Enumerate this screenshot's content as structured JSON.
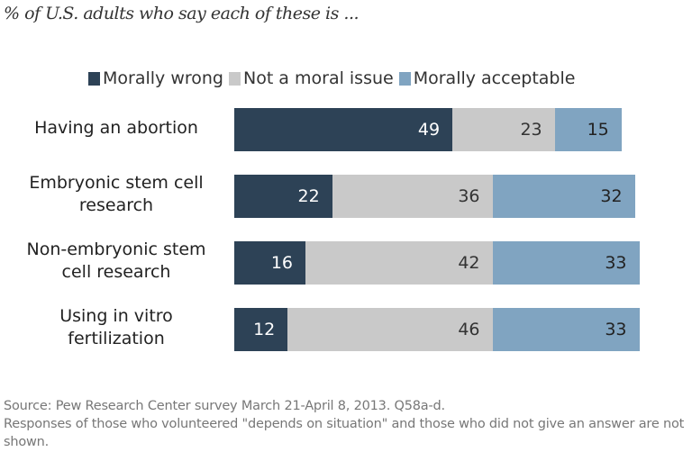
{
  "chart_data": {
    "type": "bar",
    "orientation": "horizontal",
    "stacked": true,
    "title": "",
    "subtitle": "% of U.S. adults who say each of these is ...",
    "categories": [
      "Having an abortion",
      "Embryonic stem cell research",
      "Non-embryonic stem cell research",
      "Using in vitro fertilization"
    ],
    "series": [
      {
        "name": "Morally wrong",
        "color": "#2d4256",
        "label_color": "#ffffff",
        "values": [
          49,
          22,
          16,
          12
        ]
      },
      {
        "name": "Not a moral issue",
        "color": "#c9c9c9",
        "label_color": "#333333",
        "values": [
          23,
          36,
          42,
          46
        ]
      },
      {
        "name": "Morally acceptable",
        "color": "#80a4c1",
        "label_color": "#222222",
        "values": [
          15,
          32,
          33,
          33
        ]
      }
    ],
    "legend_position": "top",
    "grid": false,
    "xlim": [
      0,
      100
    ]
  },
  "source": "Source: Pew Research Center survey March 21-April 8, 2013. Q58a-d.",
  "note": "Responses of those who  volunteered \"depends on situation\" and those who did not give an answer are not shown."
}
